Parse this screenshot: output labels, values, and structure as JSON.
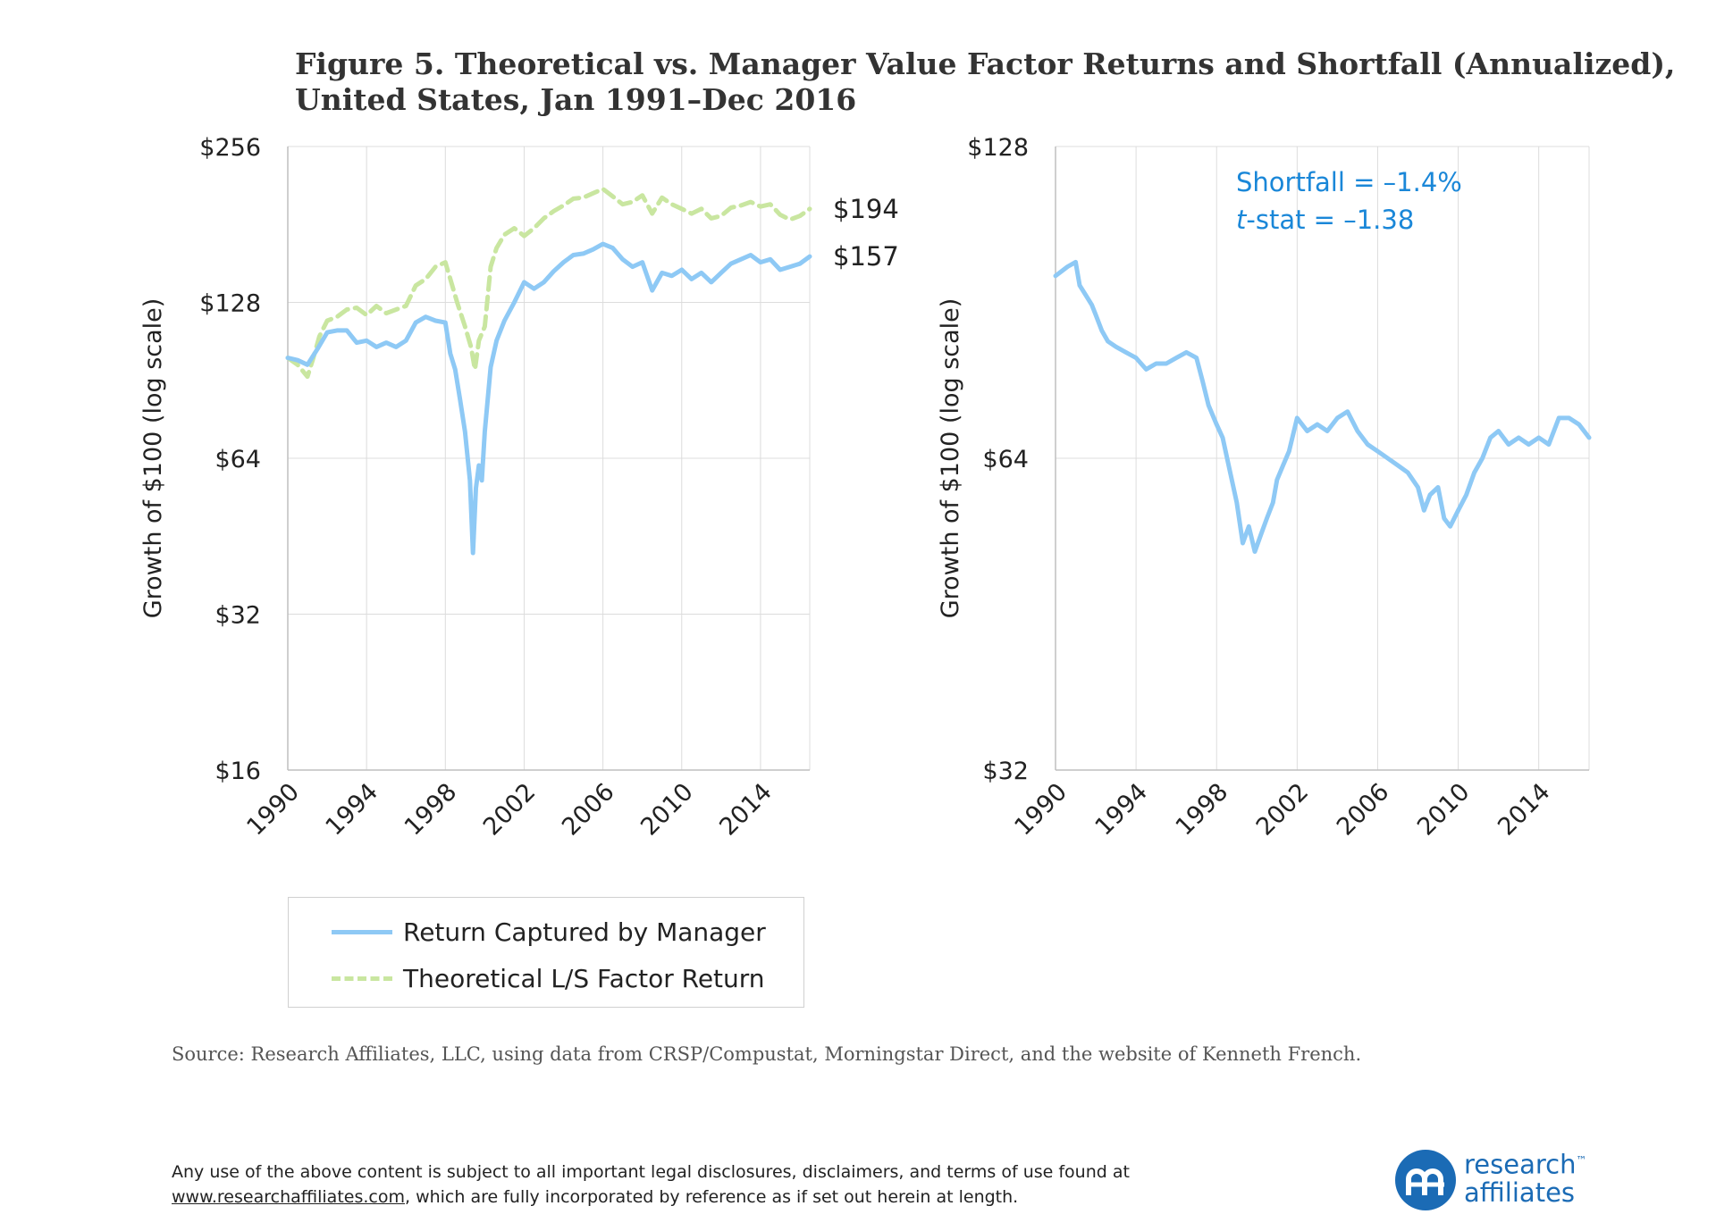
{
  "title": {
    "line1": "Figure 5. Theoretical vs. Manager Value Factor Returns and Shortfall (Annualized),",
    "line2": "United States, Jan 1991–Dec 2016"
  },
  "colors": {
    "manager": "#8ec9f5",
    "theoretical": "#c9e6a0",
    "annotation": "#1a87d8",
    "grid": "#dcdcdc"
  },
  "chart_data": [
    {
      "type": "line",
      "ylabel": "Growth of $100 (log scale)",
      "yscale": "log2",
      "ylim": [
        16,
        256
      ],
      "yticks": [
        "$16",
        "$32",
        "$64",
        "$128",
        "$256"
      ],
      "ytick_values": [
        16,
        32,
        64,
        128,
        256
      ],
      "xlim": [
        1990,
        2016.5
      ],
      "xticks": [
        "1990",
        "1994",
        "1998",
        "2002",
        "2006",
        "2010",
        "2014"
      ],
      "series": [
        {
          "name": "Return Captured by Manager",
          "end_label": "$157",
          "x": [
            1990.0,
            1990.5,
            1991.0,
            1991.5,
            1992.0,
            1992.5,
            1993.0,
            1993.5,
            1994.0,
            1994.5,
            1995.0,
            1995.5,
            1996.0,
            1996.5,
            1997.0,
            1997.5,
            1998.0,
            1998.25,
            1998.5,
            1998.75,
            1999.0,
            1999.25,
            1999.4,
            1999.55,
            1999.7,
            1999.85,
            2000.0,
            2000.3,
            2000.6,
            2001.0,
            2001.5,
            2002.0,
            2002.5,
            2003.0,
            2003.5,
            2004.0,
            2004.5,
            2005.0,
            2005.5,
            2006.0,
            2006.5,
            2007.0,
            2007.5,
            2008.0,
            2008.5,
            2009.0,
            2009.5,
            2010.0,
            2010.5,
            2011.0,
            2011.5,
            2012.0,
            2012.5,
            2013.0,
            2013.5,
            2014.0,
            2014.5,
            2015.0,
            2015.5,
            2016.0,
            2016.5
          ],
          "values": [
            100,
            99,
            97,
            104,
            112,
            113,
            113,
            107,
            108,
            105,
            107,
            105,
            108,
            117,
            120,
            118,
            117,
            102,
            95,
            83,
            72,
            58,
            42,
            56,
            62,
            58,
            72,
            96,
            108,
            118,
            128,
            140,
            136,
            140,
            147,
            153,
            158,
            159,
            162,
            166,
            163,
            155,
            150,
            153,
            135,
            146,
            144,
            148,
            142,
            146,
            140,
            146,
            152,
            155,
            158,
            153,
            155,
            148,
            150,
            152,
            157
          ]
        },
        {
          "name": "Theoretical L/S Factor Return",
          "end_label": "$194",
          "x": [
            1990.0,
            1990.5,
            1991.0,
            1991.3,
            1991.6,
            1992.0,
            1992.5,
            1993.0,
            1993.5,
            1994.0,
            1994.5,
            1995.0,
            1995.5,
            1996.0,
            1996.5,
            1997.0,
            1997.5,
            1998.0,
            1998.3,
            1998.6,
            1999.0,
            1999.3,
            1999.5,
            1999.7,
            2000.0,
            2000.3,
            2000.6,
            2001.0,
            2001.5,
            2002.0,
            2002.5,
            2003.0,
            2003.5,
            2004.0,
            2004.5,
            2005.0,
            2005.5,
            2006.0,
            2006.5,
            2007.0,
            2007.5,
            2008.0,
            2008.5,
            2009.0,
            2009.5,
            2010.0,
            2010.5,
            2011.0,
            2011.5,
            2012.0,
            2012.5,
            2013.0,
            2013.5,
            2014.0,
            2014.5,
            2015.0,
            2015.5,
            2016.0,
            2016.5
          ],
          "values": [
            100,
            97,
            92,
            100,
            110,
            118,
            120,
            124,
            125,
            121,
            126,
            122,
            124,
            126,
            138,
            142,
            150,
            153,
            140,
            128,
            115,
            105,
            95,
            108,
            115,
            150,
            163,
            173,
            178,
            172,
            178,
            186,
            192,
            197,
            203,
            204,
            208,
            212,
            205,
            198,
            200,
            206,
            190,
            204,
            198,
            194,
            190,
            194,
            186,
            188,
            195,
            197,
            200,
            196,
            198,
            189,
            185,
            188,
            194
          ]
        }
      ]
    },
    {
      "type": "line",
      "ylabel": "Growth of $100 (log scale)",
      "yscale": "log2",
      "ylim": [
        32,
        128
      ],
      "yticks": [
        "$32",
        "$64",
        "$128"
      ],
      "ytick_values": [
        32,
        64,
        128
      ],
      "xlim": [
        1990,
        2016.5
      ],
      "xticks": [
        "1990",
        "1994",
        "1998",
        "2002",
        "2006",
        "2010",
        "2014"
      ],
      "annotation": {
        "line1": "Shortfall = –1.4%",
        "line2_italic": "t",
        "line2_rest": "-stat = –1.38"
      },
      "series": [
        {
          "name": "Return Captured by Manager",
          "x": [
            1990.0,
            1990.3,
            1990.6,
            1991.0,
            1991.2,
            1991.5,
            1991.8,
            1992.0,
            1992.3,
            1992.6,
            1993.0,
            1993.5,
            1994.0,
            1994.5,
            1995.0,
            1995.5,
            1996.0,
            1996.5,
            1997.0,
            1997.3,
            1997.6,
            1998.0,
            1998.3,
            1998.6,
            1999.0,
            1999.3,
            1999.6,
            1999.9,
            2000.2,
            2000.5,
            2000.8,
            2001.0,
            2001.3,
            2001.6,
            2002.0,
            2002.5,
            2003.0,
            2003.5,
            2004.0,
            2004.5,
            2005.0,
            2005.5,
            2006.0,
            2006.5,
            2007.0,
            2007.5,
            2008.0,
            2008.3,
            2008.6,
            2009.0,
            2009.3,
            2009.6,
            2010.0,
            2010.4,
            2010.8,
            2011.2,
            2011.6,
            2012.0,
            2012.5,
            2013.0,
            2013.5,
            2014.0,
            2014.5,
            2015.0,
            2015.5,
            2016.0,
            2016.5
          ],
          "values": [
            96,
            97,
            98,
            99,
            94,
            92,
            90,
            88,
            85,
            83,
            82,
            81,
            80,
            78,
            79,
            79,
            80,
            81,
            80,
            76,
            72,
            69,
            67,
            63,
            58,
            53,
            55,
            52,
            54,
            56,
            58,
            61,
            63,
            65,
            70,
            68,
            69,
            68,
            70,
            71,
            68,
            66,
            65,
            64,
            63,
            62,
            60,
            57,
            59,
            60,
            56,
            55,
            57,
            59,
            62,
            64,
            67,
            68,
            66,
            67,
            66,
            67,
            66,
            70,
            70,
            69,
            67
          ]
        }
      ]
    }
  ],
  "legend": {
    "manager_label": "Return Captured by Manager",
    "theoretical_label": "Theoretical L/S Factor Return"
  },
  "source": "Source: Research Affiliates, LLC, using data from CRSP/Compustat, Morningstar Direct, and the website of Kenneth French.",
  "disclaimer": {
    "line1": "Any use of the above content is subject to all important legal disclosures, disclaimers, and terms of use found at",
    "link": "www.researchaffiliates.com",
    "line2_rest": ", which are fully incorporated by reference as if set out herein at length."
  },
  "logo": {
    "line1": "research",
    "line2": "affiliates",
    "tm": "™"
  }
}
